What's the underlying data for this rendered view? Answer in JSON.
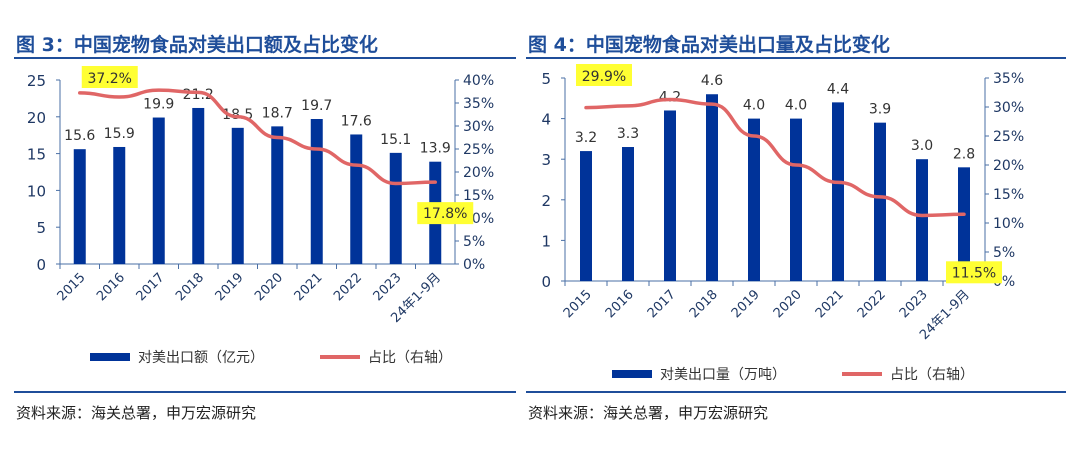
{
  "chart_data": [
    {
      "type": "bar+line",
      "title": "图 3：中国宠物食品对美出口额及占比变化",
      "categories": [
        "2015",
        "2016",
        "2017",
        "2018",
        "2019",
        "2020",
        "2021",
        "2022",
        "2023",
        "24年1-9月"
      ],
      "series": [
        {
          "name": "对美出口额（亿元）",
          "type": "bar",
          "axis": "left",
          "values": [
            15.6,
            15.9,
            19.9,
            21.2,
            18.5,
            18.7,
            19.7,
            17.6,
            15.1,
            13.9
          ],
          "color": "#003399"
        },
        {
          "name": "占比（右轴）",
          "type": "line",
          "axis": "right",
          "values": [
            37.2,
            36.3,
            37.8,
            37.3,
            32.0,
            27.5,
            25.0,
            21.5,
            17.5,
            17.8
          ],
          "color": "#e06666"
        }
      ],
      "ylim": [
        0,
        25
      ],
      "yticks": [
        0,
        5,
        10,
        15,
        20,
        25
      ],
      "y2lim": [
        0,
        40
      ],
      "y2ticks": [
        0,
        5,
        10,
        15,
        20,
        25,
        30,
        35,
        40
      ],
      "annotations": [
        "37.2%",
        "17.8%"
      ],
      "legend": "bottom",
      "source": "资料来源：海关总署，申万宏源研究"
    },
    {
      "type": "bar+line",
      "title": "图 4：中国宠物食品对美出口量及占比变化",
      "categories": [
        "2015",
        "2016",
        "2017",
        "2018",
        "2019",
        "2020",
        "2021",
        "2022",
        "2023",
        "24年1-9月"
      ],
      "series": [
        {
          "name": "对美出口量（万吨）",
          "type": "bar",
          "axis": "left",
          "values": [
            3.2,
            3.3,
            4.2,
            4.6,
            4.0,
            4.0,
            4.4,
            3.9,
            3.0,
            2.8
          ],
          "color": "#003399"
        },
        {
          "name": "占比（右轴）",
          "type": "line",
          "axis": "right",
          "values": [
            29.9,
            30.2,
            31.3,
            30.5,
            25.0,
            20.0,
            17.0,
            14.5,
            11.3,
            11.5
          ],
          "color": "#e06666"
        }
      ],
      "ylim": [
        0,
        5
      ],
      "yticks": [
        0,
        1,
        2,
        3,
        4,
        5
      ],
      "y2lim": [
        0,
        35
      ],
      "y2ticks": [
        0,
        5,
        10,
        15,
        20,
        25,
        30,
        35
      ],
      "annotations": [
        "29.9%",
        "11.5%"
      ],
      "legend": "bottom",
      "source": "资料来源：海关总署，申万宏源研究"
    }
  ]
}
